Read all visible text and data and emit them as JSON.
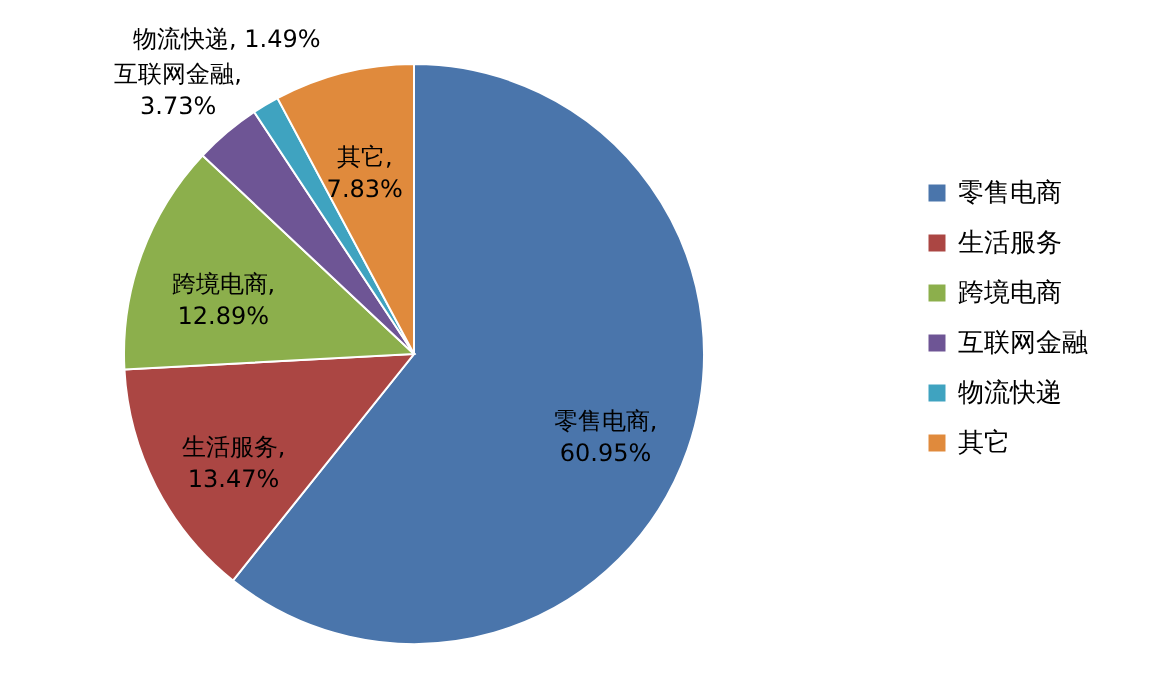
{
  "chart_data": {
    "type": "pie",
    "categories": [
      "零售电商",
      "生活服务",
      "跨境电商",
      "互联网金融",
      "物流快递",
      "其它"
    ],
    "values": [
      60.95,
      13.47,
      12.89,
      3.73,
      1.49,
      7.83
    ],
    "colors": [
      "#4a75ab",
      "#ab4643",
      "#8caf4c",
      "#6e5595",
      "#3fa3c0",
      "#e08a3c"
    ],
    "value_labels": [
      "零售电商, 60.95%",
      "生活服务, 13.47%",
      "跨境电商, 12.89%",
      "互联网金融, 3.73%",
      "物流快递, 1.49%",
      "其它, 7.83%"
    ],
    "legend": "right"
  }
}
